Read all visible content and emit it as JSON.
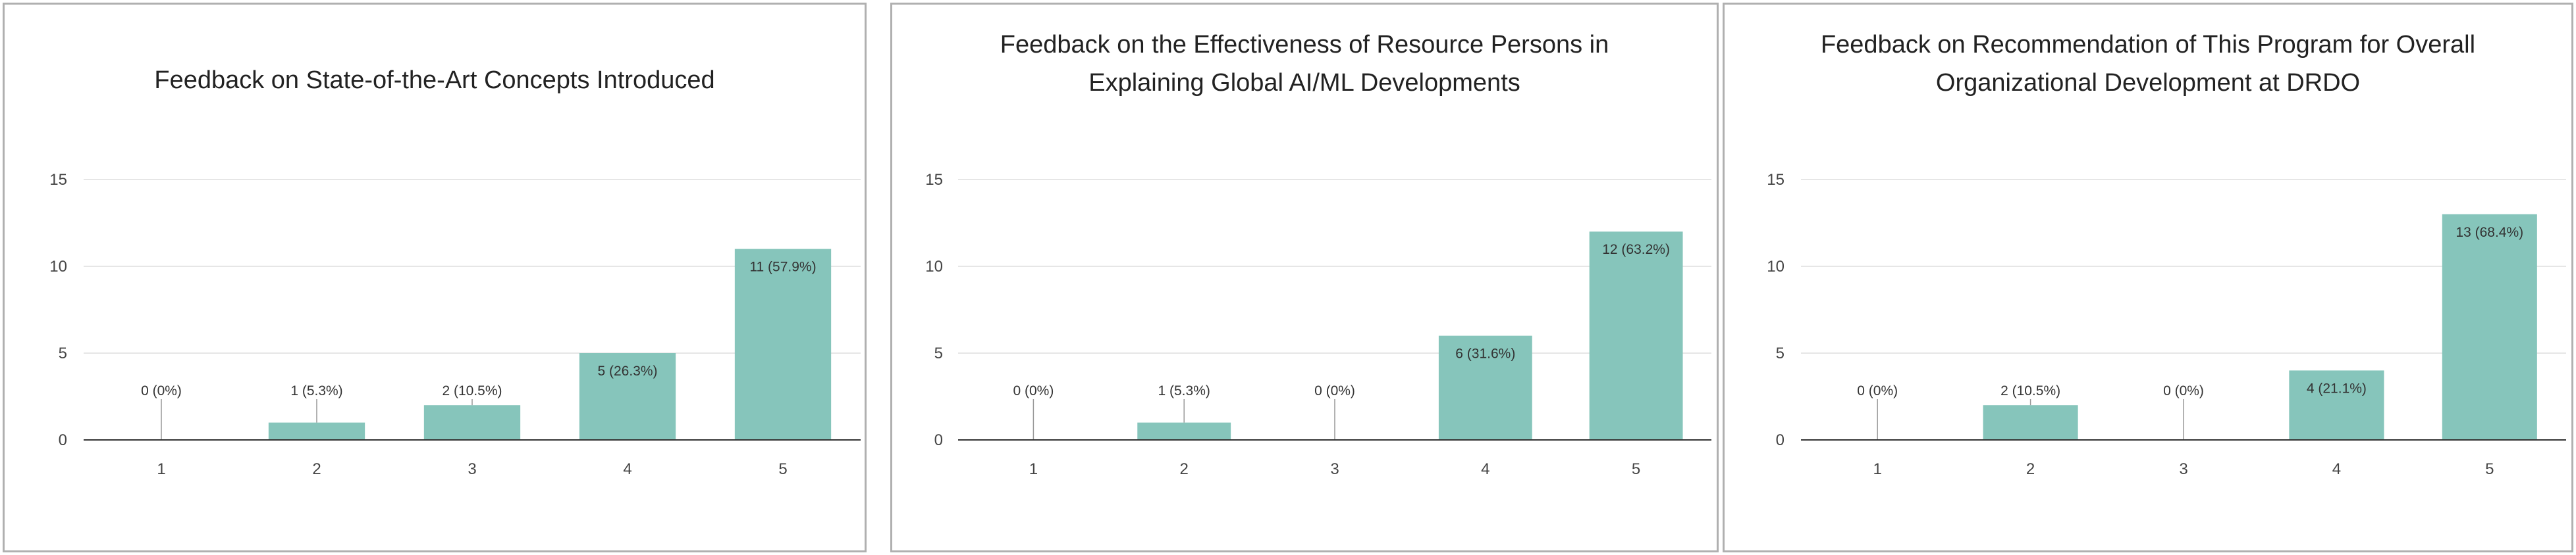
{
  "chart_data": [
    {
      "type": "bar",
      "title": "Feedback on State-of-the-Art Concepts Introduced",
      "categories": [
        "1",
        "2",
        "3",
        "4",
        "5"
      ],
      "values": [
        0,
        1,
        2,
        5,
        11
      ],
      "labels": [
        "0 (0%)",
        "1 (5.3%)",
        "2 (10.5%)",
        "5 (26.3%)",
        "11 (57.9%)"
      ],
      "y_ticks": [
        "0",
        "5",
        "10",
        "15"
      ],
      "ylim": [
        0,
        15
      ],
      "xlabel": "",
      "ylabel": "",
      "grid": true
    },
    {
      "type": "bar",
      "title": "Feedback on the Effectiveness of Resource Persons in Explaining Global AI/ML Developments",
      "title_lines": [
        "Feedback on the Effectiveness of Resource Persons in",
        "Explaining Global AI/ML Developments"
      ],
      "categories": [
        "1",
        "2",
        "3",
        "4",
        "5"
      ],
      "values": [
        0,
        1,
        0,
        6,
        12
      ],
      "labels": [
        "0 (0%)",
        "1 (5.3%)",
        "0 (0%)",
        "6 (31.6%)",
        "12 (63.2%)"
      ],
      "y_ticks": [
        "0",
        "5",
        "10",
        "15"
      ],
      "ylim": [
        0,
        15
      ],
      "xlabel": "",
      "ylabel": "",
      "grid": true
    },
    {
      "type": "bar",
      "title": "Feedback on Recommendation of This Program for Overall Organizational Development at DRDO",
      "title_lines": [
        "Feedback on Recommendation of This Program for Overall",
        "Organizational Development at DRDO"
      ],
      "categories": [
        "1",
        "2",
        "3",
        "4",
        "5"
      ],
      "values": [
        0,
        2,
        0,
        4,
        13
      ],
      "labels": [
        "0 (0%)",
        "2 (10.5%)",
        "0 (0%)",
        "4 (21.1%)",
        "13 (68.4%)"
      ],
      "y_ticks": [
        "0",
        "5",
        "10",
        "15"
      ],
      "ylim": [
        0,
        15
      ],
      "xlabel": "",
      "ylabel": "",
      "grid": true
    }
  ],
  "colors": {
    "bar": "#86c5bb",
    "grid": "#e6e6e6",
    "axis": "#333333"
  }
}
